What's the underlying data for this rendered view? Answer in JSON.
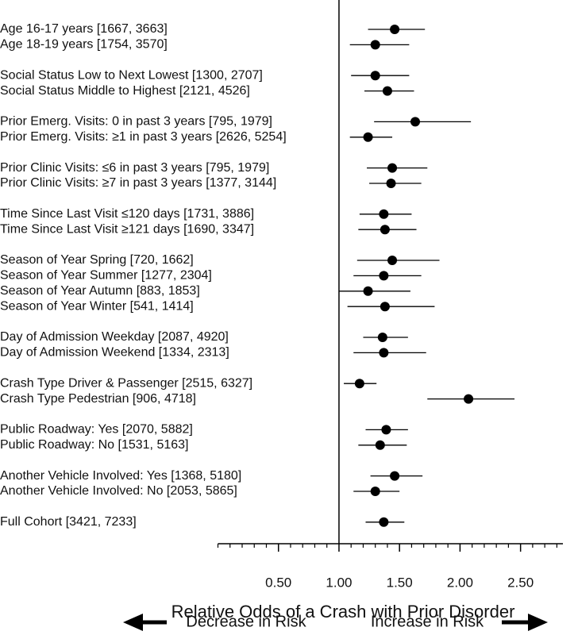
{
  "chart_data": {
    "type": "forest",
    "x_label": "Relative Odds of a Crash with Prior Disorder",
    "left_note": "Decrease in Risk",
    "right_note": "Increase in Risk",
    "categories": [
      "Age 16-17 years [1667, 3663]",
      "Age 18-19 years [1754, 3570]",
      null,
      "Social Status Low to Next Lowest [1300, 2707]",
      "Social Status Middle to Highest [2121, 4526]",
      null,
      "Prior Emerg. Visits: 0 in past 3 years [795, 1979]",
      "Prior Emerg. Visits: ≥1 in past 3 years [2626, 5254]",
      null,
      "Prior Clinic Visits: ≤6 in past 3 years [795, 1979]",
      "Prior Clinic Visits: ≥7 in past 3 years [1377, 3144]",
      null,
      "Time Since Last Visit ≤120 days [1731, 3886]",
      "Time Since Last Visit ≥121 days [1690, 3347]",
      null,
      "Season of Year Spring [720, 1662]",
      "Season of Year Summer [1277, 2304]",
      "Season of Year Autumn [883, 1853]",
      "Season of Year Winter [541, 1414]",
      null,
      "Day of Admission Weekday [2087, 4920]",
      "Day of Admission Weekend [1334, 2313]",
      null,
      "Crash Type Driver & Passenger [2515, 6327]",
      "Crash Type Pedestrian [906, 4718]",
      null,
      "Public Roadway: Yes [2070, 5882]",
      "Public Roadway: No [1531, 5163]",
      null,
      "Another Vehicle Involved: Yes [1368, 5180]",
      "Another Vehicle Involved: No [2053, 5865]",
      null,
      "Full Cohort [3421, 7233]"
    ],
    "values": [
      1.46,
      1.3,
      null,
      1.3,
      1.4,
      null,
      1.63,
      1.24,
      null,
      1.44,
      1.43,
      null,
      1.37,
      1.38,
      null,
      1.44,
      1.37,
      1.24,
      1.38,
      null,
      1.36,
      1.37,
      null,
      1.17,
      2.07,
      null,
      1.39,
      1.34,
      null,
      1.46,
      1.3,
      null,
      1.37
    ],
    "ci_low": [
      1.24,
      1.09,
      null,
      1.1,
      1.21,
      null,
      1.29,
      1.09,
      null,
      1.23,
      1.25,
      null,
      1.17,
      1.16,
      null,
      1.15,
      1.12,
      1.0,
      1.07,
      null,
      1.2,
      1.12,
      null,
      1.04,
      1.73,
      null,
      1.22,
      1.16,
      null,
      1.26,
      1.12,
      null,
      1.22
    ],
    "ci_high": [
      1.71,
      1.58,
      null,
      1.58,
      1.62,
      null,
      2.09,
      1.44,
      null,
      1.73,
      1.68,
      null,
      1.6,
      1.64,
      null,
      1.83,
      1.68,
      1.59,
      1.79,
      null,
      1.57,
      1.72,
      null,
      1.31,
      2.45,
      null,
      1.57,
      1.56,
      null,
      1.69,
      1.5,
      null,
      1.54
    ],
    "xlim": [
      0,
      2.85
    ],
    "xticks": [
      {
        "value": 0.5,
        "label": "0.50"
      },
      {
        "value": 1.0,
        "label": "1.00"
      },
      {
        "value": 1.5,
        "label": "1.50"
      },
      {
        "value": 2.0,
        "label": "2.00"
      },
      {
        "value": 2.5,
        "label": "2.50"
      }
    ],
    "minor_xticks": [
      0,
      0.1,
      0.2,
      0.3,
      0.4,
      0.6,
      0.7,
      0.8,
      0.9,
      1.1,
      1.2,
      1.3,
      1.4,
      1.6,
      1.7,
      1.8,
      1.9,
      2.1,
      2.2,
      2.3,
      2.4,
      2.6,
      2.7,
      2.8
    ],
    "reference_line": 1,
    "color": "#000000"
  }
}
